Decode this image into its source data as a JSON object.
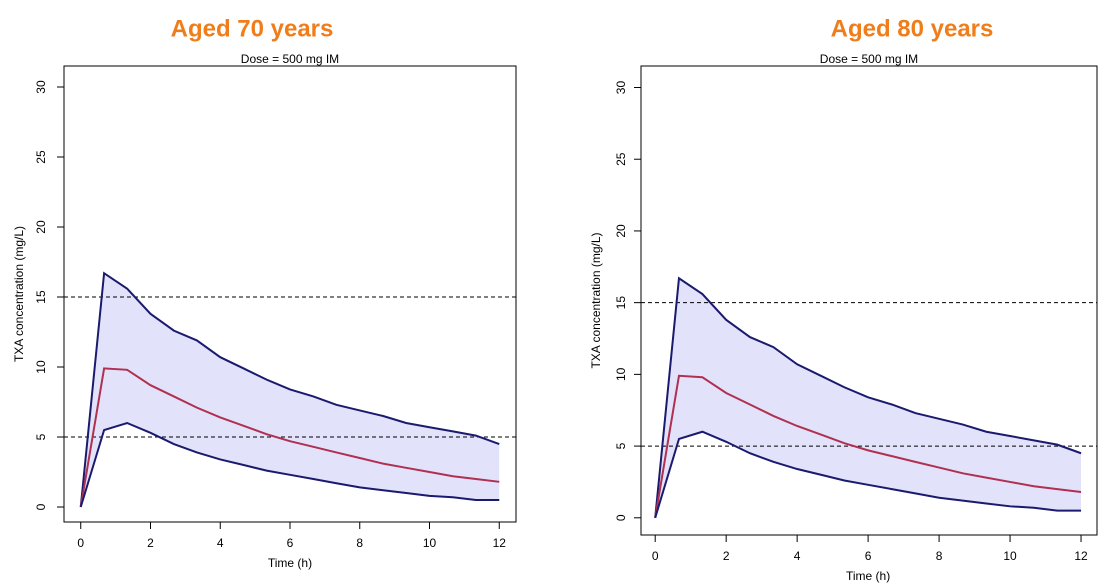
{
  "chart_data": [
    {
      "type": "line",
      "title": "Aged 70 years",
      "subtitle": "Dose = 500 mg IM",
      "x_label": "Time (h)",
      "y_label": "TXA concentration (mg/L)",
      "x": [
        0,
        0.67,
        1.33,
        2,
        2.67,
        3.33,
        4,
        4.67,
        5.33,
        6,
        6.67,
        7.33,
        8,
        8.67,
        9.33,
        10,
        10.67,
        11.33,
        12
      ],
      "series": [
        {
          "color": "#1a1a6e",
          "values": [
            0,
            16.7,
            15.6,
            13.8,
            12.6,
            11.9,
            10.7,
            9.9,
            9.1,
            8.4,
            7.9,
            7.3,
            6.9,
            6.5,
            6.0,
            5.7,
            5.4,
            5.1,
            4.5
          ]
        },
        {
          "color": "#b03050",
          "values": [
            0,
            9.9,
            9.8,
            8.7,
            7.9,
            7.1,
            6.4,
            5.8,
            5.2,
            4.7,
            4.3,
            3.9,
            3.5,
            3.1,
            2.8,
            2.5,
            2.2,
            2.0,
            1.8
          ]
        },
        {
          "color": "#1a1a6e",
          "values": [
            0,
            5.5,
            6.0,
            5.3,
            4.5,
            3.9,
            3.4,
            3.0,
            2.6,
            2.3,
            2.0,
            1.7,
            1.4,
            1.2,
            1.0,
            0.8,
            0.7,
            0.5,
            0.5
          ]
        }
      ],
      "fill_between": [
        0,
        2
      ],
      "fill_color": "#e2e2fa",
      "hlines": [
        15,
        5
      ],
      "xlim": [
        -0.48,
        12.48
      ],
      "xticks": [
        0,
        2,
        4,
        6,
        8,
        10,
        12
      ],
      "ylim": [
        -1.07,
        31.5
      ],
      "yticks": [
        0,
        5,
        10,
        15,
        20,
        25,
        30
      ]
    },
    {
      "type": "line",
      "title": "Aged 80 years",
      "subtitle": "Dose = 500 mg IM",
      "x_label": "Time (h)",
      "y_label": "TXA concentration (mg/L)",
      "x": [
        0,
        0.67,
        1.33,
        2,
        2.67,
        3.33,
        4,
        4.67,
        5.33,
        6,
        6.67,
        7.33,
        8,
        8.67,
        9.33,
        10,
        10.67,
        11.33,
        12
      ],
      "series": [
        {
          "color": "#1a1a6e",
          "values": [
            0,
            16.7,
            15.6,
            13.8,
            12.6,
            11.9,
            10.7,
            9.9,
            9.1,
            8.4,
            7.9,
            7.3,
            6.9,
            6.5,
            6.0,
            5.7,
            5.4,
            5.1,
            4.5
          ]
        },
        {
          "color": "#b03050",
          "values": [
            0,
            9.9,
            9.8,
            8.7,
            7.9,
            7.1,
            6.4,
            5.8,
            5.2,
            4.7,
            4.3,
            3.9,
            3.5,
            3.1,
            2.8,
            2.5,
            2.2,
            2.0,
            1.8
          ]
        },
        {
          "color": "#1a1a6e",
          "values": [
            0,
            5.5,
            6.0,
            5.3,
            4.5,
            3.9,
            3.4,
            3.0,
            2.6,
            2.3,
            2.0,
            1.7,
            1.4,
            1.2,
            1.0,
            0.8,
            0.7,
            0.5,
            0.5
          ]
        }
      ],
      "fill_between": [
        0,
        2
      ],
      "fill_color": "#e2e2fa",
      "hlines": [
        15,
        5
      ],
      "xlim": [
        -0.4,
        12.45
      ],
      "xticks": [
        0,
        2,
        4,
        6,
        8,
        10,
        12
      ],
      "ylim": [
        -1.2,
        31.5
      ],
      "yticks": [
        0,
        5,
        10,
        15,
        20,
        25,
        30
      ]
    }
  ]
}
